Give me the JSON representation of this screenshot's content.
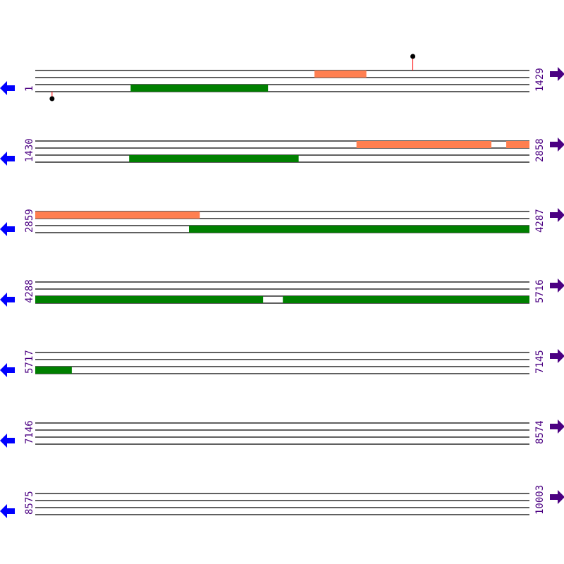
{
  "colors": {
    "track": "#000000",
    "forward_feature": "#ff7f50",
    "reverse_feature": "#008000",
    "label": "#4b0082",
    "left_arrow": "#0000ff",
    "right_arrow": "#4b0082",
    "marker_stem": "#ff0000",
    "marker_head": "#000000"
  },
  "sequence_length": 10003,
  "rows": [
    {
      "start": "1",
      "end": "1429"
    },
    {
      "start": "1430",
      "end": "2858"
    },
    {
      "start": "2859",
      "end": "4287"
    },
    {
      "start": "4288",
      "end": "5716"
    },
    {
      "start": "5717",
      "end": "7145"
    },
    {
      "start": "7146",
      "end": "8574"
    },
    {
      "start": "8575",
      "end": "10003"
    }
  ],
  "features": [
    {
      "row": 0,
      "track": 0,
      "type": "forward",
      "from": 0.565,
      "to": 0.67
    },
    {
      "row": 0,
      "track": 2,
      "type": "reverse",
      "from": 0.193,
      "to": 0.471
    },
    {
      "row": 1,
      "track": 0,
      "type": "forward",
      "from": 0.65,
      "to": 0.923
    },
    {
      "row": 1,
      "track": 0,
      "type": "forward",
      "from": 0.953,
      "to": 1.0
    },
    {
      "row": 1,
      "track": 2,
      "type": "reverse",
      "from": 0.19,
      "to": 0.533
    },
    {
      "row": 2,
      "track": 0,
      "type": "forward",
      "from": 0.0,
      "to": 0.333
    },
    {
      "row": 2,
      "track": 2,
      "type": "reverse",
      "from": 0.311,
      "to": 1.0
    },
    {
      "row": 3,
      "track": 2,
      "type": "reverse",
      "from": 0.0,
      "to": 0.461
    },
    {
      "row": 3,
      "track": 2,
      "type": "reverse",
      "from": 0.501,
      "to": 1.0
    },
    {
      "row": 4,
      "track": 2,
      "type": "reverse",
      "from": 0.0,
      "to": 0.074
    }
  ],
  "markers": [
    {
      "row": 0,
      "side": "top",
      "at": 0.764
    },
    {
      "row": 0,
      "side": "bottom",
      "at": 0.034
    }
  ]
}
